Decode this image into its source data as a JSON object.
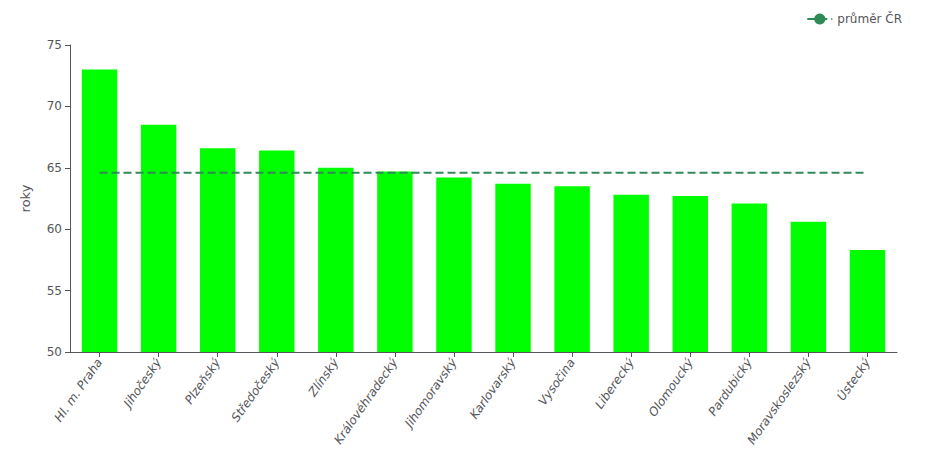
{
  "chart_data": {
    "type": "bar",
    "categories": [
      "Hl. m. Praha",
      "Jihočeský",
      "Plzeňský",
      "Středočeský",
      "Zlínský",
      "Královéhradecký",
      "Jihomoravský",
      "Karlovarský",
      "Vysočina",
      "Liberecký",
      "Olomoucký",
      "Pardubický",
      "Moravskoslezský",
      "Ústecký"
    ],
    "series": [
      {
        "type": "bar",
        "color": "#00FF00",
        "values": [
          73.0,
          68.5,
          66.6,
          66.4,
          65.0,
          64.7,
          64.2,
          63.7,
          63.5,
          62.8,
          62.7,
          62.1,
          60.6,
          58.3
        ]
      },
      {
        "type": "line",
        "name": "průměr ČR",
        "color": "#2E8B57",
        "line_style": "dashed",
        "values": [
          64.6,
          64.6,
          64.6,
          64.6,
          64.6,
          64.6,
          64.6,
          64.6,
          64.6,
          64.6,
          64.6,
          64.6,
          64.6,
          64.6
        ]
      }
    ],
    "ylabel": "roky",
    "ylim": [
      50,
      75
    ],
    "yticks": [
      50,
      55,
      60,
      65,
      70,
      75
    ],
    "grid": false,
    "legend": "upper right"
  }
}
